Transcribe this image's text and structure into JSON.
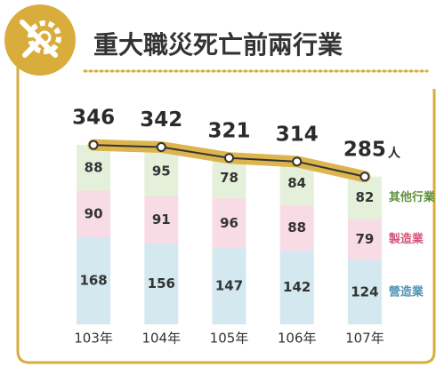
{
  "chart_data": {
    "type": "stacked_bar_line",
    "title": "重大職災死亡前兩行業",
    "categories": [
      "103年",
      "104年",
      "105年",
      "106年",
      "107年"
    ],
    "series": [
      {
        "name": "營造業",
        "color": "#d3e8ef",
        "text_color": "#4f94b5",
        "values": [
          168,
          156,
          147,
          142,
          124
        ]
      },
      {
        "name": "製造業",
        "color": "#f8dce5",
        "text_color": "#d3577a",
        "values": [
          90,
          91,
          96,
          88,
          79
        ]
      },
      {
        "name": "其他行業",
        "color": "#e5f0da",
        "text_color": "#5f8f3c",
        "values": [
          88,
          95,
          78,
          84,
          82
        ]
      }
    ],
    "totals": [
      346,
      342,
      321,
      314,
      285
    ],
    "unit": "人",
    "line_color": "#d9ad3c",
    "ylim": [
      0,
      360
    ]
  }
}
